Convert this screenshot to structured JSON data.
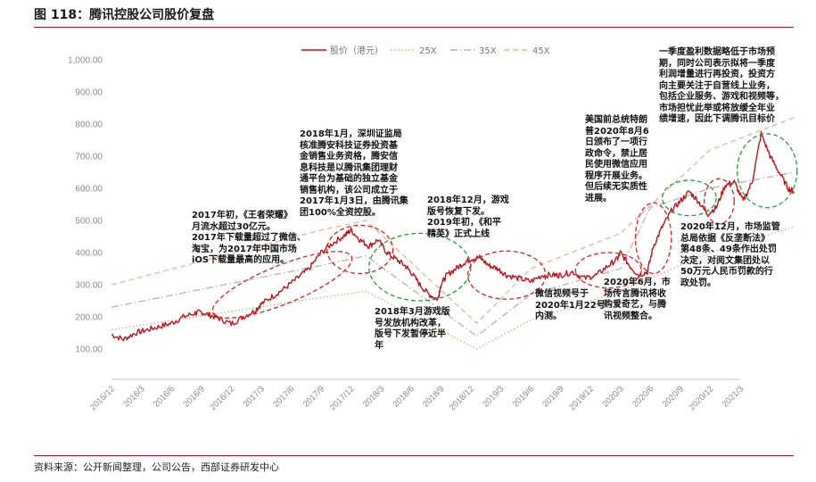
{
  "figure": {
    "title": "图 118：腾讯控股公司股价复盘",
    "source": "资料来源：公开新闻整理，公司公告，西部证券研发中心"
  },
  "colors": {
    "price": "#c0141c",
    "pe25": "#e5a27c",
    "pe35": "#b3b3b3",
    "pe45": "#f0b09a",
    "ellipse_red": "#e02020",
    "ellipse_green": "#2a9a3a",
    "title_rule": "#9b1b1b"
  },
  "chart_data": {
    "type": "line",
    "title": "",
    "xlabel": "",
    "ylabel": "",
    "ylim": [
      50,
      1050
    ],
    "y_ticks": [
      "100.00",
      "200.00",
      "300.00",
      "400.00",
      "500.00",
      "600.00",
      "700.00",
      "800.00",
      "900.00",
      "1,000.00"
    ],
    "x_ticks": [
      "2015/12",
      "2016/3",
      "2016/6",
      "2016/9",
      "2016/12",
      "2017/3",
      "2017/6",
      "2017/9",
      "2017/12",
      "2018/3",
      "2018/6",
      "2018/9",
      "2018/12",
      "2019/3",
      "2019/6",
      "2019/9",
      "2019/12",
      "2020/3",
      "2020/6",
      "2020/9",
      "2020/12",
      "2021/3"
    ],
    "grid": false,
    "legend_position": "top",
    "series": [
      {
        "name": "股价（港元）",
        "style": "solid",
        "x": [
          0,
          0.4,
          0.8,
          1.2,
          1.6,
          2,
          2.4,
          2.8,
          3,
          3.3,
          3.6,
          4,
          4.4,
          4.8,
          5,
          5.4,
          5.8,
          6.2,
          6.6,
          7,
          7.4,
          7.8,
          8,
          8.3,
          8.6,
          8.9,
          9.2,
          9.5,
          9.8,
          10,
          10.3,
          10.6,
          10.9,
          11,
          11.2,
          11.5,
          11.8,
          12,
          12.3,
          12.6,
          12.9,
          13.2,
          13.6,
          14,
          14.4,
          14.8,
          15,
          15.4,
          15.8,
          16.2,
          16.6,
          16.9,
          17,
          17.3,
          17.6,
          17.9,
          18.1,
          18.4,
          18.7,
          19,
          19.3,
          19.6,
          19.9,
          20.2,
          20.5,
          20.8,
          21.1,
          21.4,
          21.7,
          22,
          22.3,
          22.6,
          22.8
        ],
        "y": [
          145,
          130,
          150,
          160,
          170,
          180,
          200,
          212,
          215,
          205,
          195,
          178,
          200,
          220,
          240,
          265,
          290,
          320,
          350,
          400,
          430,
          455,
          470,
          440,
          420,
          440,
          400,
          380,
          360,
          340,
          300,
          270,
          255,
          300,
          330,
          350,
          370,
          380,
          385,
          360,
          350,
          330,
          320,
          310,
          330,
          330,
          330,
          340,
          320,
          330,
          360,
          380,
          400,
          360,
          330,
          340,
          420,
          480,
          530,
          560,
          590,
          560,
          520,
          540,
          610,
          620,
          560,
          620,
          770,
          700,
          650,
          600,
          590
        ]
      },
      {
        "name": "25X",
        "style": "dotted",
        "x": [
          0,
          7,
          8.5,
          12.2,
          14,
          17,
          20,
          22.8
        ],
        "y": [
          160,
          260,
          280,
          100,
          190,
          280,
          400,
          480
        ]
      },
      {
        "name": "35X",
        "style": "dashdot",
        "x": [
          0,
          7,
          8.5,
          12.2,
          14,
          17,
          18,
          20,
          22.8
        ],
        "y": [
          230,
          360,
          390,
          140,
          270,
          350,
          540,
          600,
          650
        ]
      },
      {
        "name": "45X",
        "style": "dashed",
        "x": [
          0,
          7,
          8.5,
          12.2,
          14,
          17,
          20,
          22.8
        ],
        "y": [
          300,
          470,
          500,
          180,
          350,
          460,
          720,
          820
        ]
      }
    ],
    "ellipses": [
      {
        "color": "red",
        "cx": 5.7,
        "cy": 300,
        "rx": 2.5,
        "ry": 60,
        "angle": -22
      },
      {
        "color": "red",
        "cx": 8.3,
        "cy": 410,
        "rx": 1.1,
        "ry": 75,
        "angle": 0
      },
      {
        "color": "green",
        "cx": 10.3,
        "cy": 355,
        "rx": 1.7,
        "ry": 105,
        "angle": 0
      },
      {
        "color": "red",
        "cx": 13.2,
        "cy": 330,
        "rx": 1.3,
        "ry": 75,
        "angle": 0
      },
      {
        "color": "red",
        "cx": 16.6,
        "cy": 345,
        "rx": 1.1,
        "ry": 55,
        "angle": 0
      },
      {
        "color": "red",
        "cx": 18.1,
        "cy": 445,
        "rx": 0.6,
        "ry": 110,
        "angle": 0
      },
      {
        "color": "green",
        "cx": 19.3,
        "cy": 570,
        "rx": 0.9,
        "ry": 55,
        "angle": 0
      },
      {
        "color": "red",
        "cx": 20.3,
        "cy": 560,
        "rx": 0.5,
        "ry": 70,
        "angle": 0
      },
      {
        "color": "green",
        "cx": 21.9,
        "cy": 655,
        "rx": 1.0,
        "ry": 115,
        "angle": 0
      }
    ],
    "annotations": [
      {
        "lines": [
          "2018年1月，深圳证监局",
          "核准腾安科技证券投资基",
          "金销售业务资格，腾安信",
          "息科技是以腾讯集团理财",
          "通平台为基础的独立基金",
          "销售机构，该公司成立于",
          "2017年1月3日，由腾讯集",
          "团100%全资控股。"
        ]
      },
      {
        "lines": [
          "2017年初，《王者荣耀》",
          "月流水超过30亿元。",
          "2017年下载量超过了微信、",
          "淘宝，为2017年中国市场",
          "iOS下载量最高的应用。"
        ]
      },
      {
        "lines": [
          "2018年3月游戏版",
          "号发放机构改革，",
          "版号下发暂停近半",
          "年"
        ]
      },
      {
        "lines": [
          "2018年12月，游戏",
          "版号恢复下发。",
          "2019年初，《和平",
          "精英》正式上线"
        ]
      },
      {
        "lines": [
          "微信视频号于",
          "2020年1月22号",
          "内测。"
        ]
      },
      {
        "lines": [
          "2020年6月，市",
          "场传言腾讯将收",
          "购爱奇艺，与腾",
          "讯视频整合。"
        ]
      },
      {
        "lines": [
          "美国前总统特朗",
          "普2020年8月6",
          "日颁布了一项行",
          "政命令，禁止居",
          "民使用微信应用",
          "程序开展业务。",
          "但后续无实质性",
          "进展。"
        ]
      },
      {
        "lines": [
          "一季度盈利数据略低于市场预",
          "期，同时公司表示拟将一季度",
          "利润增量进行再投资，投资方",
          "向主要关注于自营线上业务，",
          "包括企业服务、游戏和视频等，",
          "市场担忧此举或将放缓全年业",
          "绩增速，因此下调腾讯目标价"
        ]
      },
      {
        "lines": [
          "2020年12月，市场监管",
          "总局依据《反垄断法》",
          "第48条、49条作出处罚",
          "决定，对阅文集团处以",
          "50万元人民币罚款的行",
          "政处罚。"
        ]
      }
    ]
  }
}
